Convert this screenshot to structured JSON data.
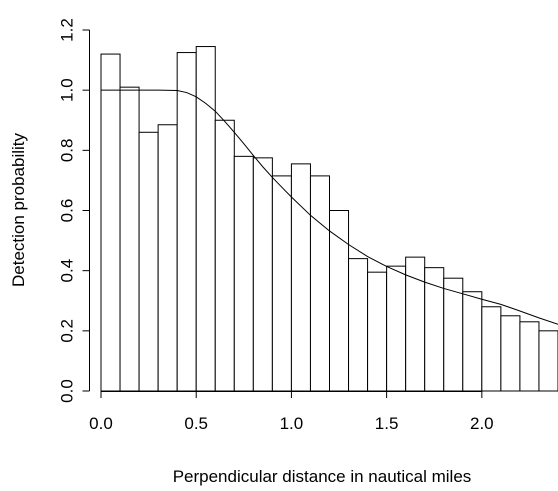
{
  "chart_data": {
    "type": "bar",
    "title": "",
    "xlabel": "Perpendicular distance in nautical miles",
    "ylabel": "Detection probability",
    "xlim": [
      0,
      2.4
    ],
    "ylim": [
      0,
      1.2
    ],
    "xticks": [
      0.0,
      0.5,
      1.0,
      1.5,
      2.0
    ],
    "xtick_labels": [
      "0.0",
      "0.5",
      "1.0",
      "1.5",
      "2.0"
    ],
    "yticks": [
      0.0,
      0.2,
      0.4,
      0.6,
      0.8,
      1.0,
      1.2
    ],
    "ytick_labels": [
      "0.0",
      "0.2",
      "0.4",
      "0.6",
      "0.8",
      "1.0",
      "1.2"
    ],
    "bin_width": 0.1,
    "bin_edges": [
      0.0,
      0.1,
      0.2,
      0.3,
      0.4,
      0.5,
      0.6,
      0.7,
      0.8,
      0.9,
      1.0,
      1.1,
      1.2,
      1.3,
      1.4,
      1.5,
      1.6,
      1.7,
      1.8,
      1.9,
      2.0,
      2.1,
      2.2,
      2.3,
      2.4
    ],
    "values": [
      1.12,
      1.01,
      0.86,
      0.885,
      1.125,
      1.145,
      0.9,
      0.78,
      0.775,
      0.715,
      0.755,
      0.715,
      0.6,
      0.44,
      0.395,
      0.415,
      0.445,
      0.41,
      0.375,
      0.33,
      0.28,
      0.25,
      0.23,
      0.2
    ],
    "fitted_curve": {
      "x": [
        0.0,
        0.1,
        0.2,
        0.3,
        0.4,
        0.45,
        0.5,
        0.55,
        0.6,
        0.65,
        0.7,
        0.75,
        0.8,
        0.85,
        0.9,
        0.95,
        1.0,
        1.1,
        1.2,
        1.3,
        1.4,
        1.5,
        1.6,
        1.7,
        1.8,
        1.9,
        2.0,
        2.1,
        2.2,
        2.3,
        2.4
      ],
      "y": [
        1.0,
        1.0,
        1.0,
        1.0,
        0.999,
        0.992,
        0.978,
        0.956,
        0.93,
        0.896,
        0.86,
        0.822,
        0.783,
        0.745,
        0.71,
        0.677,
        0.645,
        0.584,
        0.532,
        0.487,
        0.447,
        0.414,
        0.386,
        0.362,
        0.341,
        0.323,
        0.305,
        0.288,
        0.266,
        0.243,
        0.222
      ]
    }
  }
}
